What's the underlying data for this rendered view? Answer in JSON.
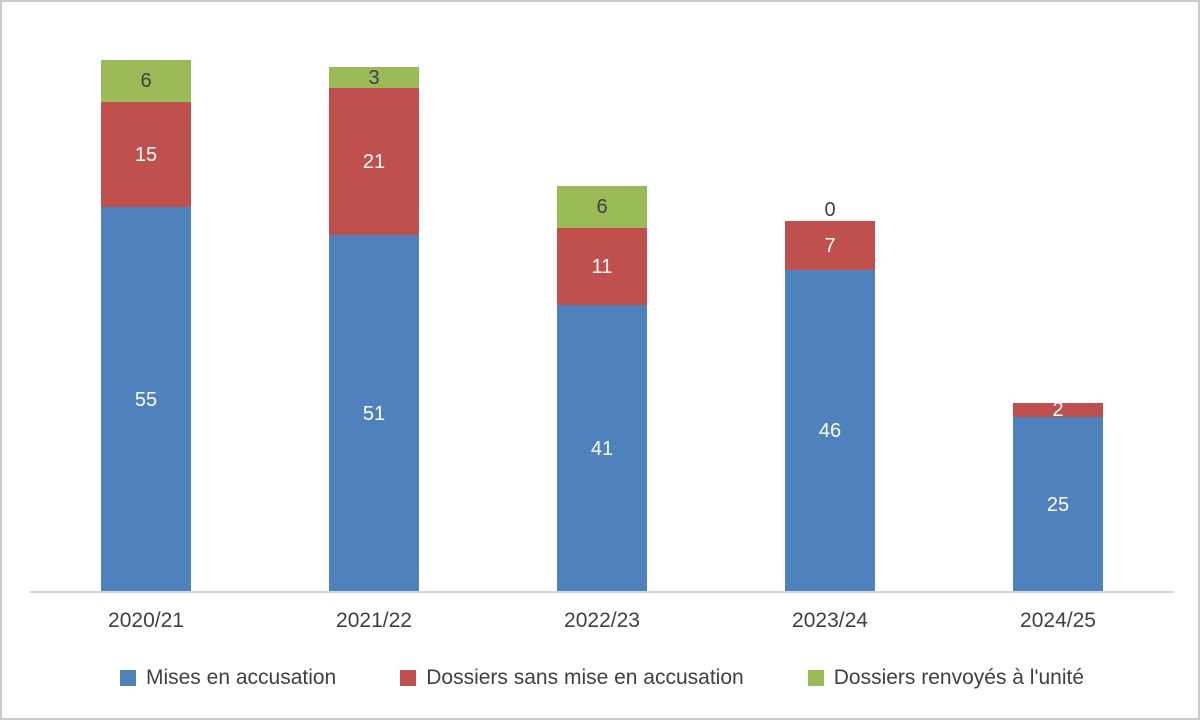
{
  "chart_data": {
    "type": "bar",
    "stacked": true,
    "title": "",
    "xlabel": "",
    "ylabel": "",
    "ylim": [
      0,
      80
    ],
    "grid": false,
    "legend_position": "bottom",
    "data_labels": true,
    "categories": [
      "2020/21",
      "2021/22",
      "2022/23",
      "2023/24",
      "2024/25"
    ],
    "series": [
      {
        "name": "Mises en accusation",
        "color": "#4F81BD",
        "label_color": "#ffffff",
        "values": [
          55,
          51,
          41,
          46,
          25
        ]
      },
      {
        "name": "Dossiers sans mise en accusation",
        "color": "#C0504D",
        "label_color": "#ffffff",
        "values": [
          15,
          21,
          11,
          7,
          2
        ]
      },
      {
        "name": "Dossiers renvoyés à l'unité",
        "color": "#9BBB59",
        "label_color": "#404040",
        "values": [
          6,
          3,
          6,
          0,
          null
        ]
      }
    ]
  }
}
